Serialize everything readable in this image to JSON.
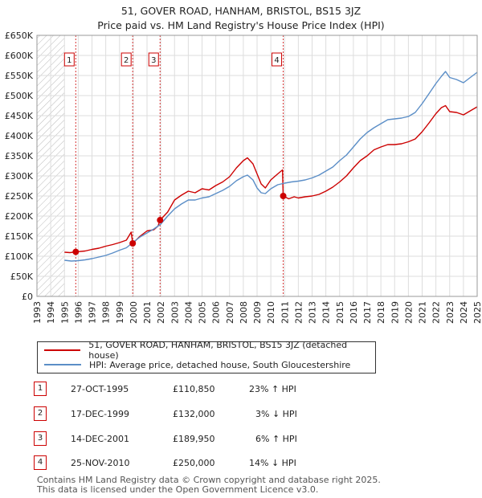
{
  "header": {
    "title": "51, GOVER ROAD, HANHAM, BRISTOL, BS15 3JZ",
    "subtitle": "Price paid vs. HM Land Registry's House Price Index (HPI)"
  },
  "chart_data": {
    "type": "line",
    "ylim": [
      0,
      650000
    ],
    "xlim": [
      1993,
      2025
    ],
    "yticks": [
      0,
      50000,
      100000,
      150000,
      200000,
      250000,
      300000,
      350000,
      400000,
      450000,
      500000,
      550000,
      600000,
      650000
    ],
    "ytick_labels": [
      "£0",
      "£50K",
      "£100K",
      "£150K",
      "£200K",
      "£250K",
      "£300K",
      "£350K",
      "£400K",
      "£450K",
      "£500K",
      "£550K",
      "£600K",
      "£650K"
    ],
    "xticks": [
      1993,
      1994,
      1995,
      1996,
      1997,
      1998,
      1999,
      2000,
      2001,
      2002,
      2003,
      2004,
      2005,
      2006,
      2007,
      2008,
      2009,
      2010,
      2011,
      2012,
      2013,
      2014,
      2015,
      2016,
      2017,
      2018,
      2019,
      2020,
      2021,
      2022,
      2023,
      2024,
      2025
    ],
    "grid": true,
    "hatched_regions": [
      [
        1993,
        1995.0
      ]
    ],
    "series": [
      {
        "name": "51, GOVER ROAD, HANHAM, BRISTOL, BS15 3JZ (detached house)",
        "color": "#cc0000",
        "points": [
          [
            1995.0,
            110000
          ],
          [
            1995.4,
            109000
          ],
          [
            1995.82,
            110850
          ],
          [
            1996.5,
            113000
          ],
          [
            1997.0,
            117000
          ],
          [
            1997.5,
            120000
          ],
          [
            1998.0,
            125000
          ],
          [
            1998.5,
            129000
          ],
          [
            1999.0,
            134000
          ],
          [
            1999.5,
            140000
          ],
          [
            1999.85,
            160000
          ],
          [
            1999.96,
            132000
          ],
          [
            2000.5,
            150000
          ],
          [
            2001.0,
            163000
          ],
          [
            2001.5,
            166000
          ],
          [
            2001.8,
            175000
          ],
          [
            2001.95,
            189950
          ],
          [
            2002.5,
            210000
          ],
          [
            2003.0,
            240000
          ],
          [
            2003.5,
            252000
          ],
          [
            2004.0,
            262000
          ],
          [
            2004.5,
            258000
          ],
          [
            2005.0,
            268000
          ],
          [
            2005.5,
            265000
          ],
          [
            2006.0,
            276000
          ],
          [
            2006.5,
            285000
          ],
          [
            2007.0,
            298000
          ],
          [
            2007.5,
            320000
          ],
          [
            2008.0,
            338000
          ],
          [
            2008.3,
            345000
          ],
          [
            2008.7,
            330000
          ],
          [
            2009.0,
            305000
          ],
          [
            2009.3,
            280000
          ],
          [
            2009.6,
            270000
          ],
          [
            2010.0,
            290000
          ],
          [
            2010.5,
            305000
          ],
          [
            2010.85,
            315000
          ],
          [
            2010.9,
            250000
          ],
          [
            2011.3,
            243000
          ],
          [
            2011.7,
            248000
          ],
          [
            2012.0,
            245000
          ],
          [
            2012.5,
            248000
          ],
          [
            2013.0,
            250000
          ],
          [
            2013.5,
            254000
          ],
          [
            2014.0,
            262000
          ],
          [
            2014.5,
            272000
          ],
          [
            2015.0,
            285000
          ],
          [
            2015.5,
            300000
          ],
          [
            2016.0,
            320000
          ],
          [
            2016.5,
            338000
          ],
          [
            2017.0,
            350000
          ],
          [
            2017.5,
            365000
          ],
          [
            2018.0,
            372000
          ],
          [
            2018.5,
            378000
          ],
          [
            2019.0,
            378000
          ],
          [
            2019.5,
            380000
          ],
          [
            2020.0,
            385000
          ],
          [
            2020.5,
            392000
          ],
          [
            2021.0,
            410000
          ],
          [
            2021.5,
            432000
          ],
          [
            2022.0,
            455000
          ],
          [
            2022.4,
            470000
          ],
          [
            2022.7,
            475000
          ],
          [
            2023.0,
            460000
          ],
          [
            2023.5,
            458000
          ],
          [
            2024.0,
            452000
          ],
          [
            2024.5,
            462000
          ],
          [
            2025.0,
            472000
          ]
        ]
      },
      {
        "name": "HPI: Average price, detached house, South Gloucestershire",
        "color": "#5b8ec7",
        "points": [
          [
            1995.0,
            90000
          ],
          [
            1995.5,
            88000
          ],
          [
            1996.0,
            89000
          ],
          [
            1996.5,
            91000
          ],
          [
            1997.0,
            94000
          ],
          [
            1997.5,
            98000
          ],
          [
            1998.0,
            102000
          ],
          [
            1998.5,
            108000
          ],
          [
            1999.0,
            115000
          ],
          [
            1999.5,
            121000
          ],
          [
            2000.0,
            135000
          ],
          [
            2000.5,
            148000
          ],
          [
            2001.0,
            158000
          ],
          [
            2001.5,
            168000
          ],
          [
            2002.0,
            180000
          ],
          [
            2002.5,
            200000
          ],
          [
            2003.0,
            218000
          ],
          [
            2003.5,
            230000
          ],
          [
            2004.0,
            240000
          ],
          [
            2004.5,
            240000
          ],
          [
            2005.0,
            245000
          ],
          [
            2005.5,
            248000
          ],
          [
            2006.0,
            256000
          ],
          [
            2006.5,
            264000
          ],
          [
            2007.0,
            274000
          ],
          [
            2007.5,
            288000
          ],
          [
            2008.0,
            298000
          ],
          [
            2008.3,
            302000
          ],
          [
            2008.7,
            290000
          ],
          [
            2009.0,
            270000
          ],
          [
            2009.3,
            258000
          ],
          [
            2009.6,
            256000
          ],
          [
            2010.0,
            268000
          ],
          [
            2010.5,
            278000
          ],
          [
            2011.0,
            282000
          ],
          [
            2011.5,
            285000
          ],
          [
            2012.0,
            287000
          ],
          [
            2012.5,
            290000
          ],
          [
            2013.0,
            295000
          ],
          [
            2013.5,
            302000
          ],
          [
            2014.0,
            312000
          ],
          [
            2014.5,
            322000
          ],
          [
            2015.0,
            338000
          ],
          [
            2015.5,
            352000
          ],
          [
            2016.0,
            372000
          ],
          [
            2016.5,
            392000
          ],
          [
            2017.0,
            408000
          ],
          [
            2017.5,
            420000
          ],
          [
            2018.0,
            430000
          ],
          [
            2018.5,
            440000
          ],
          [
            2019.0,
            442000
          ],
          [
            2019.5,
            444000
          ],
          [
            2020.0,
            448000
          ],
          [
            2020.5,
            458000
          ],
          [
            2021.0,
            480000
          ],
          [
            2021.5,
            505000
          ],
          [
            2022.0,
            530000
          ],
          [
            2022.4,
            548000
          ],
          [
            2022.7,
            560000
          ],
          [
            2023.0,
            545000
          ],
          [
            2023.5,
            540000
          ],
          [
            2024.0,
            532000
          ],
          [
            2024.5,
            545000
          ],
          [
            2025.0,
            558000
          ]
        ]
      }
    ],
    "sales": [
      {
        "id": "1",
        "x": 1995.82,
        "price": 110850
      },
      {
        "id": "2",
        "x": 1999.96,
        "price": 132000
      },
      {
        "id": "3",
        "x": 2001.95,
        "price": 189950
      },
      {
        "id": "4",
        "x": 2010.9,
        "price": 250000
      }
    ]
  },
  "legend": {
    "property_label": "51, GOVER ROAD, HANHAM, BRISTOL, BS15 3JZ (detached house)",
    "hpi_label": "HPI: Average price, detached house, South Gloucestershire"
  },
  "sales_table": [
    {
      "num": "1",
      "date": "27-OCT-1995",
      "price": "£110,850",
      "hpi": "23% ↑ HPI"
    },
    {
      "num": "2",
      "date": "17-DEC-1999",
      "price": "£132,000",
      "hpi": "3% ↓ HPI"
    },
    {
      "num": "3",
      "date": "14-DEC-2001",
      "price": "£189,950",
      "hpi": "6% ↑ HPI"
    },
    {
      "num": "4",
      "date": "25-NOV-2010",
      "price": "£250,000",
      "hpi": "14% ↓ HPI"
    }
  ],
  "footer": {
    "line1": "Contains HM Land Registry data © Crown copyright and database right 2025.",
    "line2": "This data is licensed under the Open Government Licence v3.0."
  },
  "colors": {
    "property": "#cc0000",
    "hpi": "#5b8ec7",
    "grid": "#dddddd",
    "hatch": "#bbbbbb"
  }
}
